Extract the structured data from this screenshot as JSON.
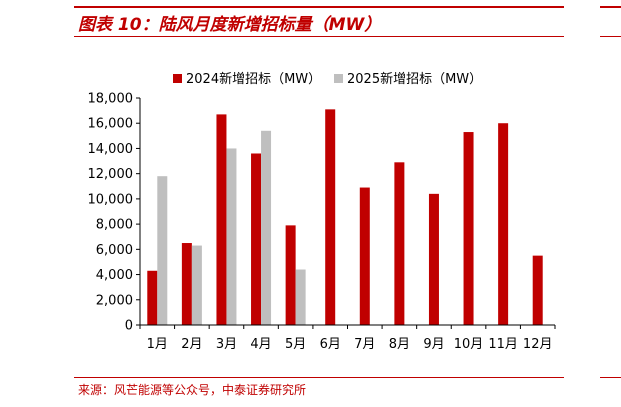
{
  "figure": {
    "title": "图表 10：陆风月度新增招标量（MW）",
    "source": "来源：风芒能源等公众号，中泰证券研究所"
  },
  "colors": {
    "accent": "#c00000",
    "series_2024": "#c00000",
    "series_2025": "#bfbfbf"
  },
  "chart_data": {
    "type": "bar",
    "categories": [
      "1月",
      "2月",
      "3月",
      "4月",
      "5月",
      "6月",
      "7月",
      "8月",
      "9月",
      "10月",
      "11月",
      "12月"
    ],
    "series": [
      {
        "name": "2024新增招标（MW）",
        "values": [
          4300,
          6500,
          16700,
          13600,
          7900,
          17100,
          10900,
          12900,
          10400,
          15300,
          16000,
          5500
        ]
      },
      {
        "name": "2025新增招标（MW）",
        "values": [
          11800,
          6300,
          14000,
          15400,
          4400,
          null,
          null,
          null,
          null,
          null,
          null,
          null
        ]
      }
    ],
    "yticks": [
      "0",
      "2,000",
      "4,000",
      "6,000",
      "8,000",
      "10,000",
      "12,000",
      "14,000",
      "16,000",
      "18,000"
    ],
    "ylim": [
      0,
      18000
    ],
    "legend_position": "top",
    "grid": false
  }
}
